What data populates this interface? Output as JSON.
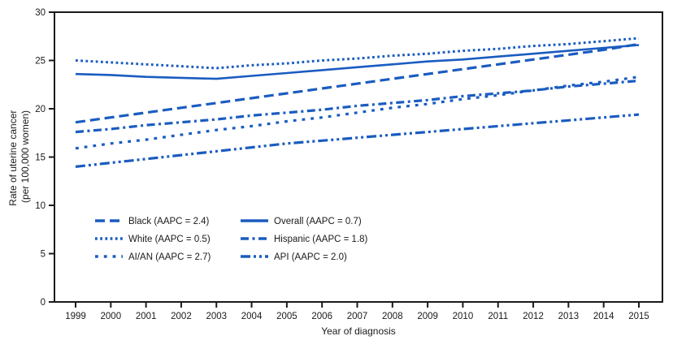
{
  "figure": {
    "line_color": "#1a5cc0",
    "frame_color": "#1a1a1a",
    "y_axis": {
      "title_line1": "Rate of uterine cancer",
      "title_line2": "(per 100,000 women)",
      "ticks": [
        0,
        5,
        10,
        15,
        20,
        25,
        30
      ]
    },
    "x_axis": {
      "title": "Year of diagnosis",
      "ticks": [
        1999,
        2000,
        2001,
        2002,
        2003,
        2004,
        2005,
        2006,
        2007,
        2008,
        2009,
        2010,
        2011,
        2012,
        2013,
        2014,
        2015
      ]
    },
    "legend": {
      "columns": [
        [
          "Black",
          "White",
          "AI/AN"
        ],
        [
          "Overall",
          "Hispanic",
          "API"
        ]
      ]
    }
  },
  "chart_data": {
    "type": "line",
    "title": "",
    "xlabel": "Year of diagnosis",
    "ylabel": "Rate of uterine cancer (per 100,000 women)",
    "x": [
      1999,
      2000,
      2001,
      2002,
      2003,
      2004,
      2005,
      2006,
      2007,
      2008,
      2009,
      2010,
      2011,
      2012,
      2013,
      2014,
      2015
    ],
    "xlim": [
      1999,
      2015
    ],
    "ylim": [
      0,
      30
    ],
    "grid": false,
    "legend_position": "inside lower-left, two columns",
    "series": [
      {
        "name": "Black",
        "legend_label": "Black (AAPC = 2.4)",
        "aapc": 2.4,
        "line_style": "long-dash",
        "values": [
          18.6,
          19.1,
          19.6,
          20.1,
          20.6,
          21.1,
          21.6,
          22.1,
          22.6,
          23.1,
          23.6,
          24.1,
          24.6,
          25.1,
          25.6,
          26.1,
          26.7
        ]
      },
      {
        "name": "White",
        "legend_label": "White (AAPC = 0.5)",
        "aapc": 0.5,
        "line_style": "dense-dot",
        "values": [
          25.0,
          24.8,
          24.6,
          24.4,
          24.2,
          24.5,
          24.7,
          25.0,
          25.2,
          25.5,
          25.7,
          26.0,
          26.2,
          26.5,
          26.7,
          27.0,
          27.3
        ]
      },
      {
        "name": "AI/AN",
        "legend_label": "AI/AN (AAPC = 2.7)",
        "aapc": 2.7,
        "line_style": "sparse-dot",
        "values": [
          15.9,
          16.4,
          16.8,
          17.3,
          17.8,
          18.2,
          18.7,
          19.1,
          19.6,
          20.1,
          20.5,
          21.0,
          21.4,
          21.9,
          22.4,
          22.8,
          23.3
        ]
      },
      {
        "name": "Overall",
        "legend_label": "Overall (AAPC = 0.7)",
        "aapc": 0.7,
        "line_style": "solid",
        "values": [
          23.6,
          23.5,
          23.3,
          23.2,
          23.1,
          23.4,
          23.7,
          24.0,
          24.3,
          24.6,
          24.9,
          25.1,
          25.4,
          25.7,
          26.0,
          26.3,
          26.6
        ]
      },
      {
        "name": "Hispanic",
        "legend_label": "Hispanic (AAPC = 1.8)",
        "aapc": 1.8,
        "line_style": "dash-dot",
        "values": [
          17.6,
          17.9,
          18.3,
          18.6,
          18.9,
          19.3,
          19.6,
          19.9,
          20.3,
          20.6,
          20.9,
          21.3,
          21.6,
          21.9,
          22.3,
          22.6,
          22.9
        ]
      },
      {
        "name": "API",
        "legend_label": "API (AAPC = 2.0)",
        "aapc": 2.0,
        "line_style": "dash-dot-dot",
        "values": [
          14.0,
          14.4,
          14.8,
          15.2,
          15.6,
          16.0,
          16.4,
          16.7,
          17.0,
          17.3,
          17.6,
          17.9,
          18.2,
          18.5,
          18.8,
          19.1,
          19.4
        ]
      }
    ]
  }
}
